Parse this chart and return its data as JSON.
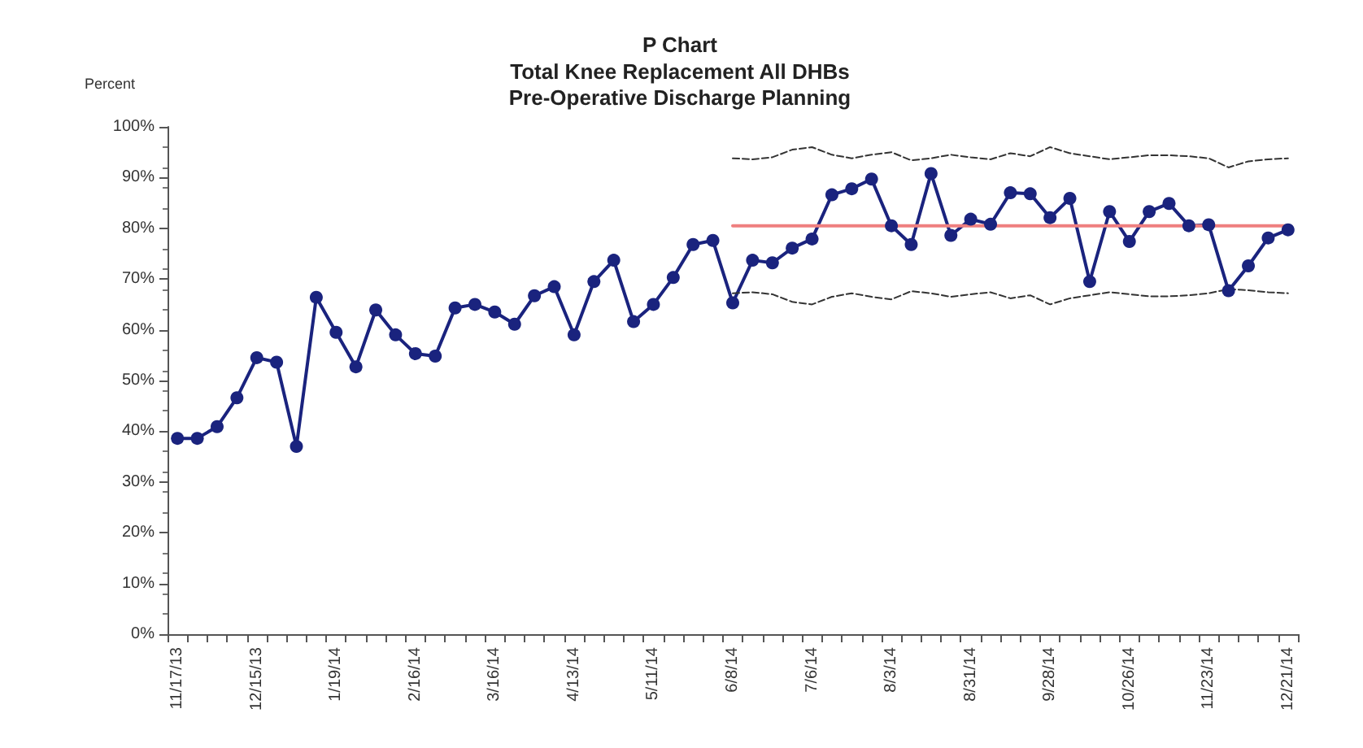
{
  "chart_data": {
    "type": "line",
    "title": "P Chart",
    "subtitle": "Total Knee Replacement All DHBs\nPre-Operative Discharge Planning",
    "ylabel": "Percent",
    "categories": [
      "11/17/13",
      null,
      null,
      null,
      "12/15/13",
      null,
      null,
      null,
      "1/19/14",
      null,
      null,
      null,
      "2/16/14",
      null,
      null,
      null,
      "3/16/14",
      null,
      null,
      null,
      "4/13/14",
      null,
      null,
      null,
      "5/11/14",
      null,
      null,
      null,
      "6/8/14",
      null,
      null,
      null,
      "7/6/14",
      null,
      null,
      null,
      "8/3/14",
      null,
      null,
      null,
      "8/31/14",
      null,
      null,
      null,
      "9/28/14",
      null,
      null,
      null,
      "10/26/14",
      null,
      null,
      null,
      "11/23/14",
      null,
      null,
      null,
      "12/21/14"
    ],
    "series": [
      {
        "color": "#1a237e",
        "marker": "circle",
        "line_style": "solid",
        "values": [
          38.6,
          38.6,
          40.9,
          46.6,
          54.5,
          53.6,
          37.0,
          66.4,
          59.5,
          52.7,
          63.9,
          59.0,
          55.3,
          54.8,
          64.3,
          65.0,
          63.5,
          61.1,
          66.7,
          68.5,
          59.0,
          69.5,
          73.7,
          61.6,
          65.0,
          70.3,
          76.8,
          77.6,
          65.3,
          73.7,
          73.2,
          76.1,
          77.9,
          86.6,
          87.8,
          89.7,
          80.5,
          76.8,
          90.8,
          78.6,
          81.8,
          80.8,
          87.0,
          86.8,
          82.1,
          85.9,
          69.5,
          83.3,
          77.4,
          83.3,
          84.9,
          80.5,
          80.7,
          67.7,
          72.6,
          78.1,
          79.7
        ]
      },
      {
        "color": "#ef7f7f",
        "marker": "none",
        "line_style": "solid",
        "values": [
          null,
          null,
          null,
          null,
          null,
          null,
          null,
          null,
          null,
          null,
          null,
          null,
          null,
          null,
          null,
          null,
          null,
          null,
          null,
          null,
          null,
          null,
          null,
          null,
          null,
          null,
          null,
          null,
          80.5,
          80.5,
          80.5,
          80.5,
          80.5,
          80.5,
          80.5,
          80.5,
          80.5,
          80.5,
          80.5,
          80.5,
          80.5,
          80.5,
          80.5,
          80.5,
          80.5,
          80.5,
          80.5,
          80.5,
          80.5,
          80.5,
          80.5,
          80.5,
          80.5,
          80.5,
          80.5,
          80.5,
          80.5
        ]
      },
      {
        "color": "#333333",
        "marker": "none",
        "line_style": "dashed",
        "values": [
          null,
          null,
          null,
          null,
          null,
          null,
          null,
          null,
          null,
          null,
          null,
          null,
          null,
          null,
          null,
          null,
          null,
          null,
          null,
          null,
          null,
          null,
          null,
          null,
          null,
          null,
          null,
          null,
          93.8,
          93.6,
          94.0,
          95.5,
          96.0,
          94.5,
          93.8,
          94.5,
          95.0,
          93.4,
          93.8,
          94.5,
          94.0,
          93.6,
          94.8,
          94.2,
          96.0,
          94.8,
          94.2,
          93.6,
          94.0,
          94.4,
          94.4,
          94.2,
          93.8,
          92.0,
          93.2,
          93.6,
          93.8
        ]
      },
      {
        "color": "#333333",
        "marker": "none",
        "line_style": "dashed",
        "values": [
          null,
          null,
          null,
          null,
          null,
          null,
          null,
          null,
          null,
          null,
          null,
          null,
          null,
          null,
          null,
          null,
          null,
          null,
          null,
          null,
          null,
          null,
          null,
          null,
          null,
          null,
          null,
          null,
          67.2,
          67.4,
          67.0,
          65.5,
          65.0,
          66.5,
          67.2,
          66.5,
          66.0,
          67.6,
          67.2,
          66.5,
          67.0,
          67.4,
          66.2,
          66.8,
          65.0,
          66.2,
          66.8,
          67.4,
          67.0,
          66.6,
          66.6,
          66.8,
          67.2,
          68.0,
          67.8,
          67.4,
          67.2
        ]
      }
    ],
    "ylim": [
      0,
      100
    ],
    "yticks": [
      {
        "value": 0,
        "label": "0%"
      },
      {
        "value": 10,
        "label": "10%"
      },
      {
        "value": 20,
        "label": "20%"
      },
      {
        "value": 30,
        "label": "30%"
      },
      {
        "value": 40,
        "label": "40%"
      },
      {
        "value": 50,
        "label": "50%"
      },
      {
        "value": 60,
        "label": "60%"
      },
      {
        "value": 70,
        "label": "70%"
      },
      {
        "value": 80,
        "label": "80%"
      },
      {
        "value": 90,
        "label": "90%"
      },
      {
        "value": 100,
        "label": "100%"
      }
    ],
    "grid": false
  }
}
